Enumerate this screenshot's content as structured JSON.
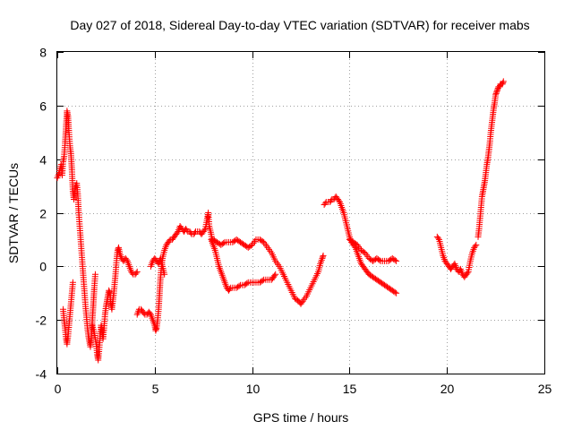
{
  "chart_data": {
    "type": "scatter",
    "title": "Day 027 of 2018, Sidereal Day-to-day VTEC variation (SDTVAR) for receiver mabs",
    "xlabel": "GPS time / hours",
    "ylabel": "SDTVAR / TECUs",
    "xlim": [
      0,
      25
    ],
    "ylim": [
      -4,
      8
    ],
    "xticks": [
      0,
      5,
      10,
      15,
      20,
      25
    ],
    "yticks": [
      -4,
      -2,
      0,
      2,
      4,
      6,
      8
    ],
    "grid": true,
    "marker": "+",
    "series": [
      {
        "name": "SDTVAR",
        "color": "#ff0000",
        "segments": [
          [
            [
              0.0,
              3.3
            ],
            [
              0.1,
              3.5
            ],
            [
              0.2,
              3.8
            ],
            [
              0.25,
              3.4
            ],
            [
              0.3,
              3.9
            ],
            [
              0.35,
              4.1
            ],
            [
              0.4,
              4.6
            ],
            [
              0.45,
              5.2
            ],
            [
              0.5,
              5.8
            ],
            [
              0.55,
              5.6
            ],
            [
              0.6,
              5.0
            ],
            [
              0.65,
              4.5
            ],
            [
              0.7,
              4.2
            ],
            [
              0.75,
              3.6
            ],
            [
              0.8,
              2.8
            ],
            [
              0.85,
              2.5
            ],
            [
              0.9,
              2.9
            ],
            [
              1.0,
              3.1
            ],
            [
              1.05,
              2.7
            ],
            [
              1.1,
              2.0
            ],
            [
              1.15,
              1.5
            ],
            [
              1.2,
              1.0
            ],
            [
              1.25,
              0.5
            ],
            [
              1.3,
              0.0
            ],
            [
              1.35,
              -0.5
            ],
            [
              1.4,
              -1.0
            ],
            [
              1.45,
              -1.5
            ],
            [
              1.5,
              -1.9
            ],
            [
              1.55,
              -2.3
            ],
            [
              1.6,
              -2.6
            ],
            [
              1.65,
              -2.8
            ],
            [
              1.7,
              -3.0
            ],
            [
              1.75,
              -2.6
            ],
            [
              1.8,
              -2.0
            ],
            [
              1.85,
              -1.4
            ],
            [
              1.9,
              -0.8
            ],
            [
              1.95,
              -0.3
            ]
          ],
          [
            [
              0.3,
              -1.6
            ],
            [
              0.35,
              -2.0
            ],
            [
              0.4,
              -2.3
            ],
            [
              0.45,
              -2.7
            ],
            [
              0.5,
              -2.9
            ],
            [
              0.55,
              -2.6
            ],
            [
              0.6,
              -2.2
            ],
            [
              0.65,
              -1.8
            ],
            [
              0.7,
              -1.4
            ],
            [
              0.75,
              -1.0
            ],
            [
              0.8,
              -0.6
            ]
          ],
          [
            [
              1.8,
              -2.2
            ],
            [
              1.9,
              -2.5
            ],
            [
              2.0,
              -2.9
            ],
            [
              2.05,
              -3.3
            ],
            [
              2.1,
              -3.5
            ],
            [
              2.15,
              -3.1
            ],
            [
              2.2,
              -2.6
            ],
            [
              2.25,
              -2.2
            ],
            [
              2.3,
              -2.4
            ],
            [
              2.35,
              -2.7
            ],
            [
              2.4,
              -2.3
            ],
            [
              2.45,
              -1.8
            ],
            [
              2.5,
              -1.5
            ],
            [
              2.55,
              -1.3
            ],
            [
              2.6,
              -1.1
            ],
            [
              2.65,
              -0.9
            ],
            [
              2.7,
              -1.0
            ],
            [
              2.75,
              -1.4
            ],
            [
              2.8,
              -1.6
            ],
            [
              2.85,
              -1.3
            ],
            [
              2.9,
              -1.0
            ],
            [
              2.95,
              -0.6
            ],
            [
              3.0,
              -0.2
            ],
            [
              3.05,
              0.3
            ],
            [
              3.1,
              0.6
            ],
            [
              3.15,
              0.7
            ],
            [
              3.2,
              0.5
            ],
            [
              3.3,
              0.3
            ],
            [
              3.4,
              0.2
            ],
            [
              3.5,
              0.3
            ],
            [
              3.6,
              0.2
            ],
            [
              3.7,
              0.0
            ],
            [
              3.8,
              -0.2
            ],
            [
              3.9,
              -0.3
            ],
            [
              4.0,
              -0.3
            ],
            [
              4.1,
              -0.2
            ]
          ],
          [
            [
              4.1,
              -1.8
            ],
            [
              4.2,
              -1.6
            ],
            [
              4.3,
              -1.6
            ],
            [
              4.4,
              -1.7
            ],
            [
              4.5,
              -1.8
            ],
            [
              4.6,
              -1.8
            ],
            [
              4.7,
              -1.7
            ],
            [
              4.8,
              -1.8
            ],
            [
              4.9,
              -2.0
            ],
            [
              5.0,
              -2.2
            ],
            [
              5.05,
              -2.4
            ],
            [
              5.1,
              -2.3
            ],
            [
              5.15,
              -2.0
            ],
            [
              5.2,
              -1.6
            ],
            [
              5.25,
              -1.0
            ],
            [
              5.3,
              -0.4
            ],
            [
              5.35,
              0.0
            ],
            [
              5.4,
              0.3
            ],
            [
              5.5,
              0.6
            ],
            [
              5.6,
              0.8
            ],
            [
              5.7,
              0.9
            ],
            [
              5.8,
              1.0
            ],
            [
              5.9,
              1.0
            ],
            [
              6.0,
              1.1
            ],
            [
              6.1,
              1.2
            ],
            [
              6.2,
              1.3
            ],
            [
              6.3,
              1.5
            ],
            [
              6.4,
              1.4
            ],
            [
              6.5,
              1.3
            ],
            [
              6.6,
              1.4
            ],
            [
              6.7,
              1.3
            ],
            [
              6.8,
              1.3
            ],
            [
              6.9,
              1.2
            ],
            [
              7.0,
              1.2
            ],
            [
              7.1,
              1.3
            ],
            [
              7.2,
              1.3
            ],
            [
              7.3,
              1.3
            ],
            [
              7.4,
              1.2
            ],
            [
              7.5,
              1.3
            ],
            [
              7.6,
              1.4
            ],
            [
              7.7,
              1.8
            ],
            [
              7.75,
              2.0
            ],
            [
              7.8,
              1.5
            ],
            [
              7.9,
              1.2
            ],
            [
              8.0,
              0.8
            ]
          ],
          [
            [
              4.8,
              0.0
            ],
            [
              4.9,
              0.2
            ],
            [
              5.0,
              0.3
            ],
            [
              5.1,
              0.2
            ],
            [
              5.2,
              0.1
            ],
            [
              5.3,
              0.3
            ],
            [
              5.4,
              0.0
            ],
            [
              5.5,
              -0.3
            ]
          ],
          [
            [
              7.9,
              1.0
            ],
            [
              8.0,
              0.8
            ],
            [
              8.1,
              0.6
            ],
            [
              8.2,
              0.3
            ],
            [
              8.3,
              0.0
            ],
            [
              8.4,
              -0.2
            ],
            [
              8.5,
              -0.4
            ],
            [
              8.6,
              -0.6
            ],
            [
              8.7,
              -0.8
            ],
            [
              8.8,
              -0.9
            ],
            [
              8.9,
              -0.8
            ],
            [
              9.0,
              -0.8
            ],
            [
              9.2,
              -0.8
            ],
            [
              9.4,
              -0.7
            ],
            [
              9.6,
              -0.7
            ],
            [
              9.8,
              -0.6
            ],
            [
              10.0,
              -0.6
            ],
            [
              10.2,
              -0.6
            ],
            [
              10.4,
              -0.6
            ],
            [
              10.6,
              -0.5
            ],
            [
              10.8,
              -0.5
            ],
            [
              11.0,
              -0.5
            ],
            [
              11.1,
              -0.4
            ],
            [
              11.2,
              -0.3
            ]
          ],
          [
            [
              8.0,
              1.0
            ],
            [
              8.2,
              0.9
            ],
            [
              8.4,
              0.8
            ],
            [
              8.6,
              0.9
            ],
            [
              8.8,
              0.9
            ],
            [
              9.0,
              0.9
            ],
            [
              9.2,
              1.0
            ],
            [
              9.4,
              0.9
            ],
            [
              9.6,
              0.8
            ],
            [
              9.8,
              0.7
            ],
            [
              10.0,
              0.8
            ],
            [
              10.2,
              1.0
            ],
            [
              10.4,
              1.0
            ],
            [
              10.6,
              0.9
            ],
            [
              10.8,
              0.7
            ],
            [
              11.0,
              0.5
            ],
            [
              11.2,
              0.2
            ],
            [
              11.4,
              0.0
            ],
            [
              11.6,
              -0.3
            ],
            [
              11.8,
              -0.6
            ],
            [
              12.0,
              -0.9
            ],
            [
              12.2,
              -1.2
            ],
            [
              12.4,
              -1.3
            ],
            [
              12.5,
              -1.4
            ],
            [
              12.6,
              -1.3
            ],
            [
              12.8,
              -1.1
            ],
            [
              13.0,
              -0.8
            ],
            [
              13.2,
              -0.5
            ],
            [
              13.4,
              -0.2
            ],
            [
              13.5,
              0.1
            ],
            [
              13.6,
              0.3
            ],
            [
              13.65,
              0.4
            ]
          ],
          [
            [
              13.7,
              2.3
            ],
            [
              13.8,
              2.4
            ],
            [
              13.9,
              2.4
            ],
            [
              14.0,
              2.4
            ],
            [
              14.1,
              2.5
            ],
            [
              14.2,
              2.5
            ],
            [
              14.3,
              2.6
            ],
            [
              14.4,
              2.5
            ],
            [
              14.5,
              2.4
            ],
            [
              14.6,
              2.2
            ],
            [
              14.7,
              2.0
            ],
            [
              14.8,
              1.7
            ],
            [
              14.9,
              1.4
            ],
            [
              15.0,
              1.1
            ],
            [
              15.1,
              0.9
            ],
            [
              15.2,
              0.8
            ],
            [
              15.3,
              0.7
            ],
            [
              15.4,
              0.5
            ],
            [
              15.5,
              0.3
            ],
            [
              15.6,
              0.1
            ],
            [
              15.7,
              0.0
            ],
            [
              15.8,
              -0.1
            ],
            [
              15.9,
              -0.2
            ],
            [
              16.0,
              -0.3
            ],
            [
              16.2,
              -0.4
            ],
            [
              16.4,
              -0.5
            ],
            [
              16.6,
              -0.6
            ],
            [
              16.8,
              -0.7
            ],
            [
              17.0,
              -0.8
            ],
            [
              17.2,
              -0.9
            ],
            [
              17.4,
              -1.0
            ]
          ],
          [
            [
              15.0,
              1.0
            ],
            [
              15.2,
              0.9
            ],
            [
              15.4,
              0.8
            ],
            [
              15.6,
              0.6
            ],
            [
              15.8,
              0.5
            ],
            [
              16.0,
              0.3
            ],
            [
              16.2,
              0.2
            ],
            [
              16.4,
              0.3
            ],
            [
              16.6,
              0.2
            ],
            [
              16.8,
              0.2
            ],
            [
              17.0,
              0.2
            ],
            [
              17.2,
              0.3
            ],
            [
              17.4,
              0.2
            ]
          ],
          [
            [
              19.5,
              1.1
            ],
            [
              19.6,
              1.0
            ],
            [
              19.7,
              0.7
            ],
            [
              19.8,
              0.4
            ],
            [
              19.9,
              0.2
            ],
            [
              20.0,
              0.1
            ],
            [
              20.1,
              0.0
            ],
            [
              20.2,
              -0.1
            ],
            [
              20.3,
              0.0
            ],
            [
              20.4,
              0.1
            ],
            [
              20.5,
              -0.1
            ],
            [
              20.6,
              -0.2
            ],
            [
              20.7,
              -0.1
            ],
            [
              20.8,
              -0.3
            ],
            [
              20.9,
              -0.4
            ],
            [
              21.0,
              -0.3
            ],
            [
              21.1,
              -0.2
            ],
            [
              21.2,
              0.2
            ],
            [
              21.3,
              0.5
            ],
            [
              21.4,
              0.7
            ],
            [
              21.5,
              0.8
            ]
          ],
          [
            [
              21.6,
              1.1
            ],
            [
              21.65,
              1.4
            ],
            [
              21.7,
              1.8
            ],
            [
              21.75,
              2.2
            ],
            [
              21.8,
              2.6
            ],
            [
              21.85,
              2.8
            ],
            [
              21.9,
              3.0
            ],
            [
              21.95,
              3.2
            ],
            [
              22.0,
              3.5
            ],
            [
              22.05,
              3.8
            ],
            [
              22.1,
              4.0
            ],
            [
              22.15,
              4.3
            ],
            [
              22.2,
              4.6
            ],
            [
              22.25,
              5.0
            ],
            [
              22.3,
              5.3
            ],
            [
              22.35,
              5.6
            ],
            [
              22.4,
              5.9
            ],
            [
              22.45,
              6.1
            ],
            [
              22.5,
              6.4
            ],
            [
              22.55,
              6.5
            ],
            [
              22.6,
              6.6
            ],
            [
              22.65,
              6.7
            ],
            [
              22.7,
              6.7
            ],
            [
              22.75,
              6.8
            ],
            [
              22.8,
              6.8
            ],
            [
              22.85,
              6.8
            ],
            [
              22.9,
              6.9
            ]
          ]
        ]
      }
    ]
  }
}
